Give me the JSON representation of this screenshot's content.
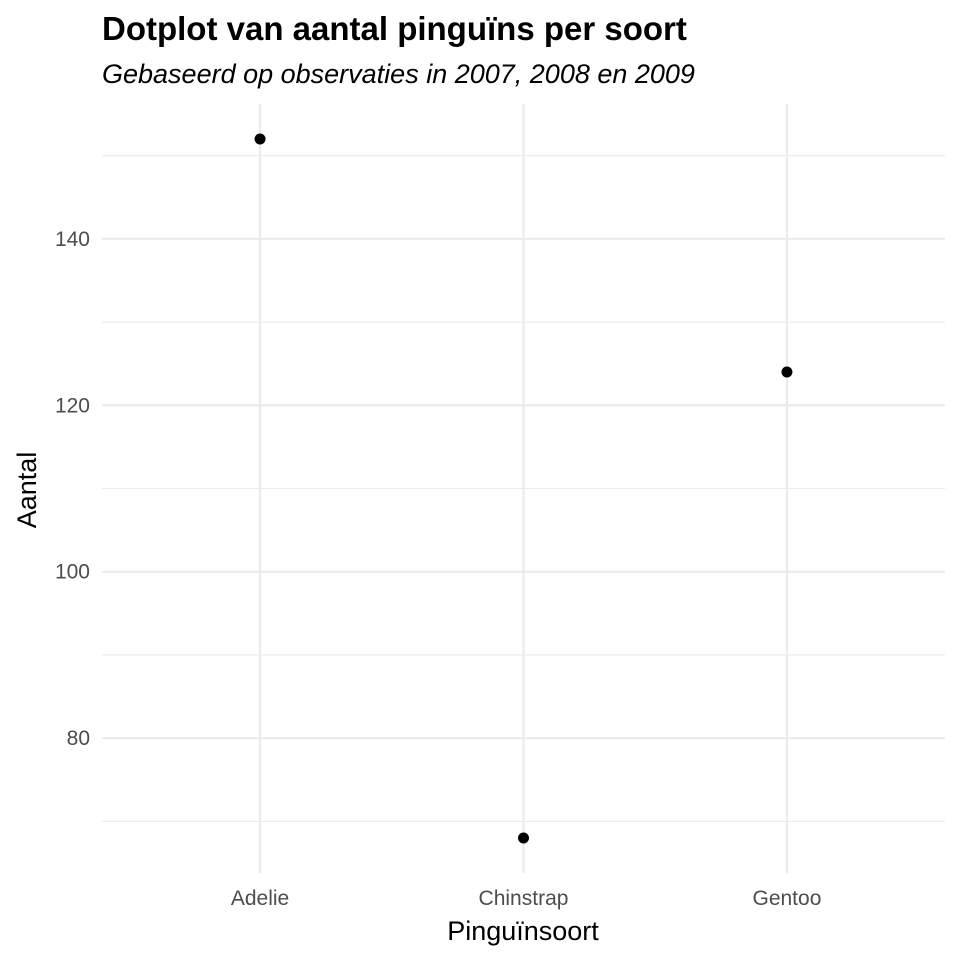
{
  "chart_data": {
    "type": "scatter",
    "title": "Dotplot van aantal pinguïns per soort",
    "subtitle": "Gebaseerd op observaties in 2007, 2008 en 2009",
    "xlabel": "Pinguïnsoort",
    "ylabel": "Aantal",
    "categories": [
      "Adelie",
      "Chinstrap",
      "Gentoo"
    ],
    "values": [
      152,
      68,
      124
    ],
    "ylim": [
      63.8,
      156.2
    ],
    "y_major_ticks": [
      80,
      100,
      120,
      140
    ],
    "y_minor_ticks": [
      70,
      90,
      110,
      130,
      150
    ],
    "grid": true,
    "legend": "none",
    "point_color": "#000000"
  }
}
